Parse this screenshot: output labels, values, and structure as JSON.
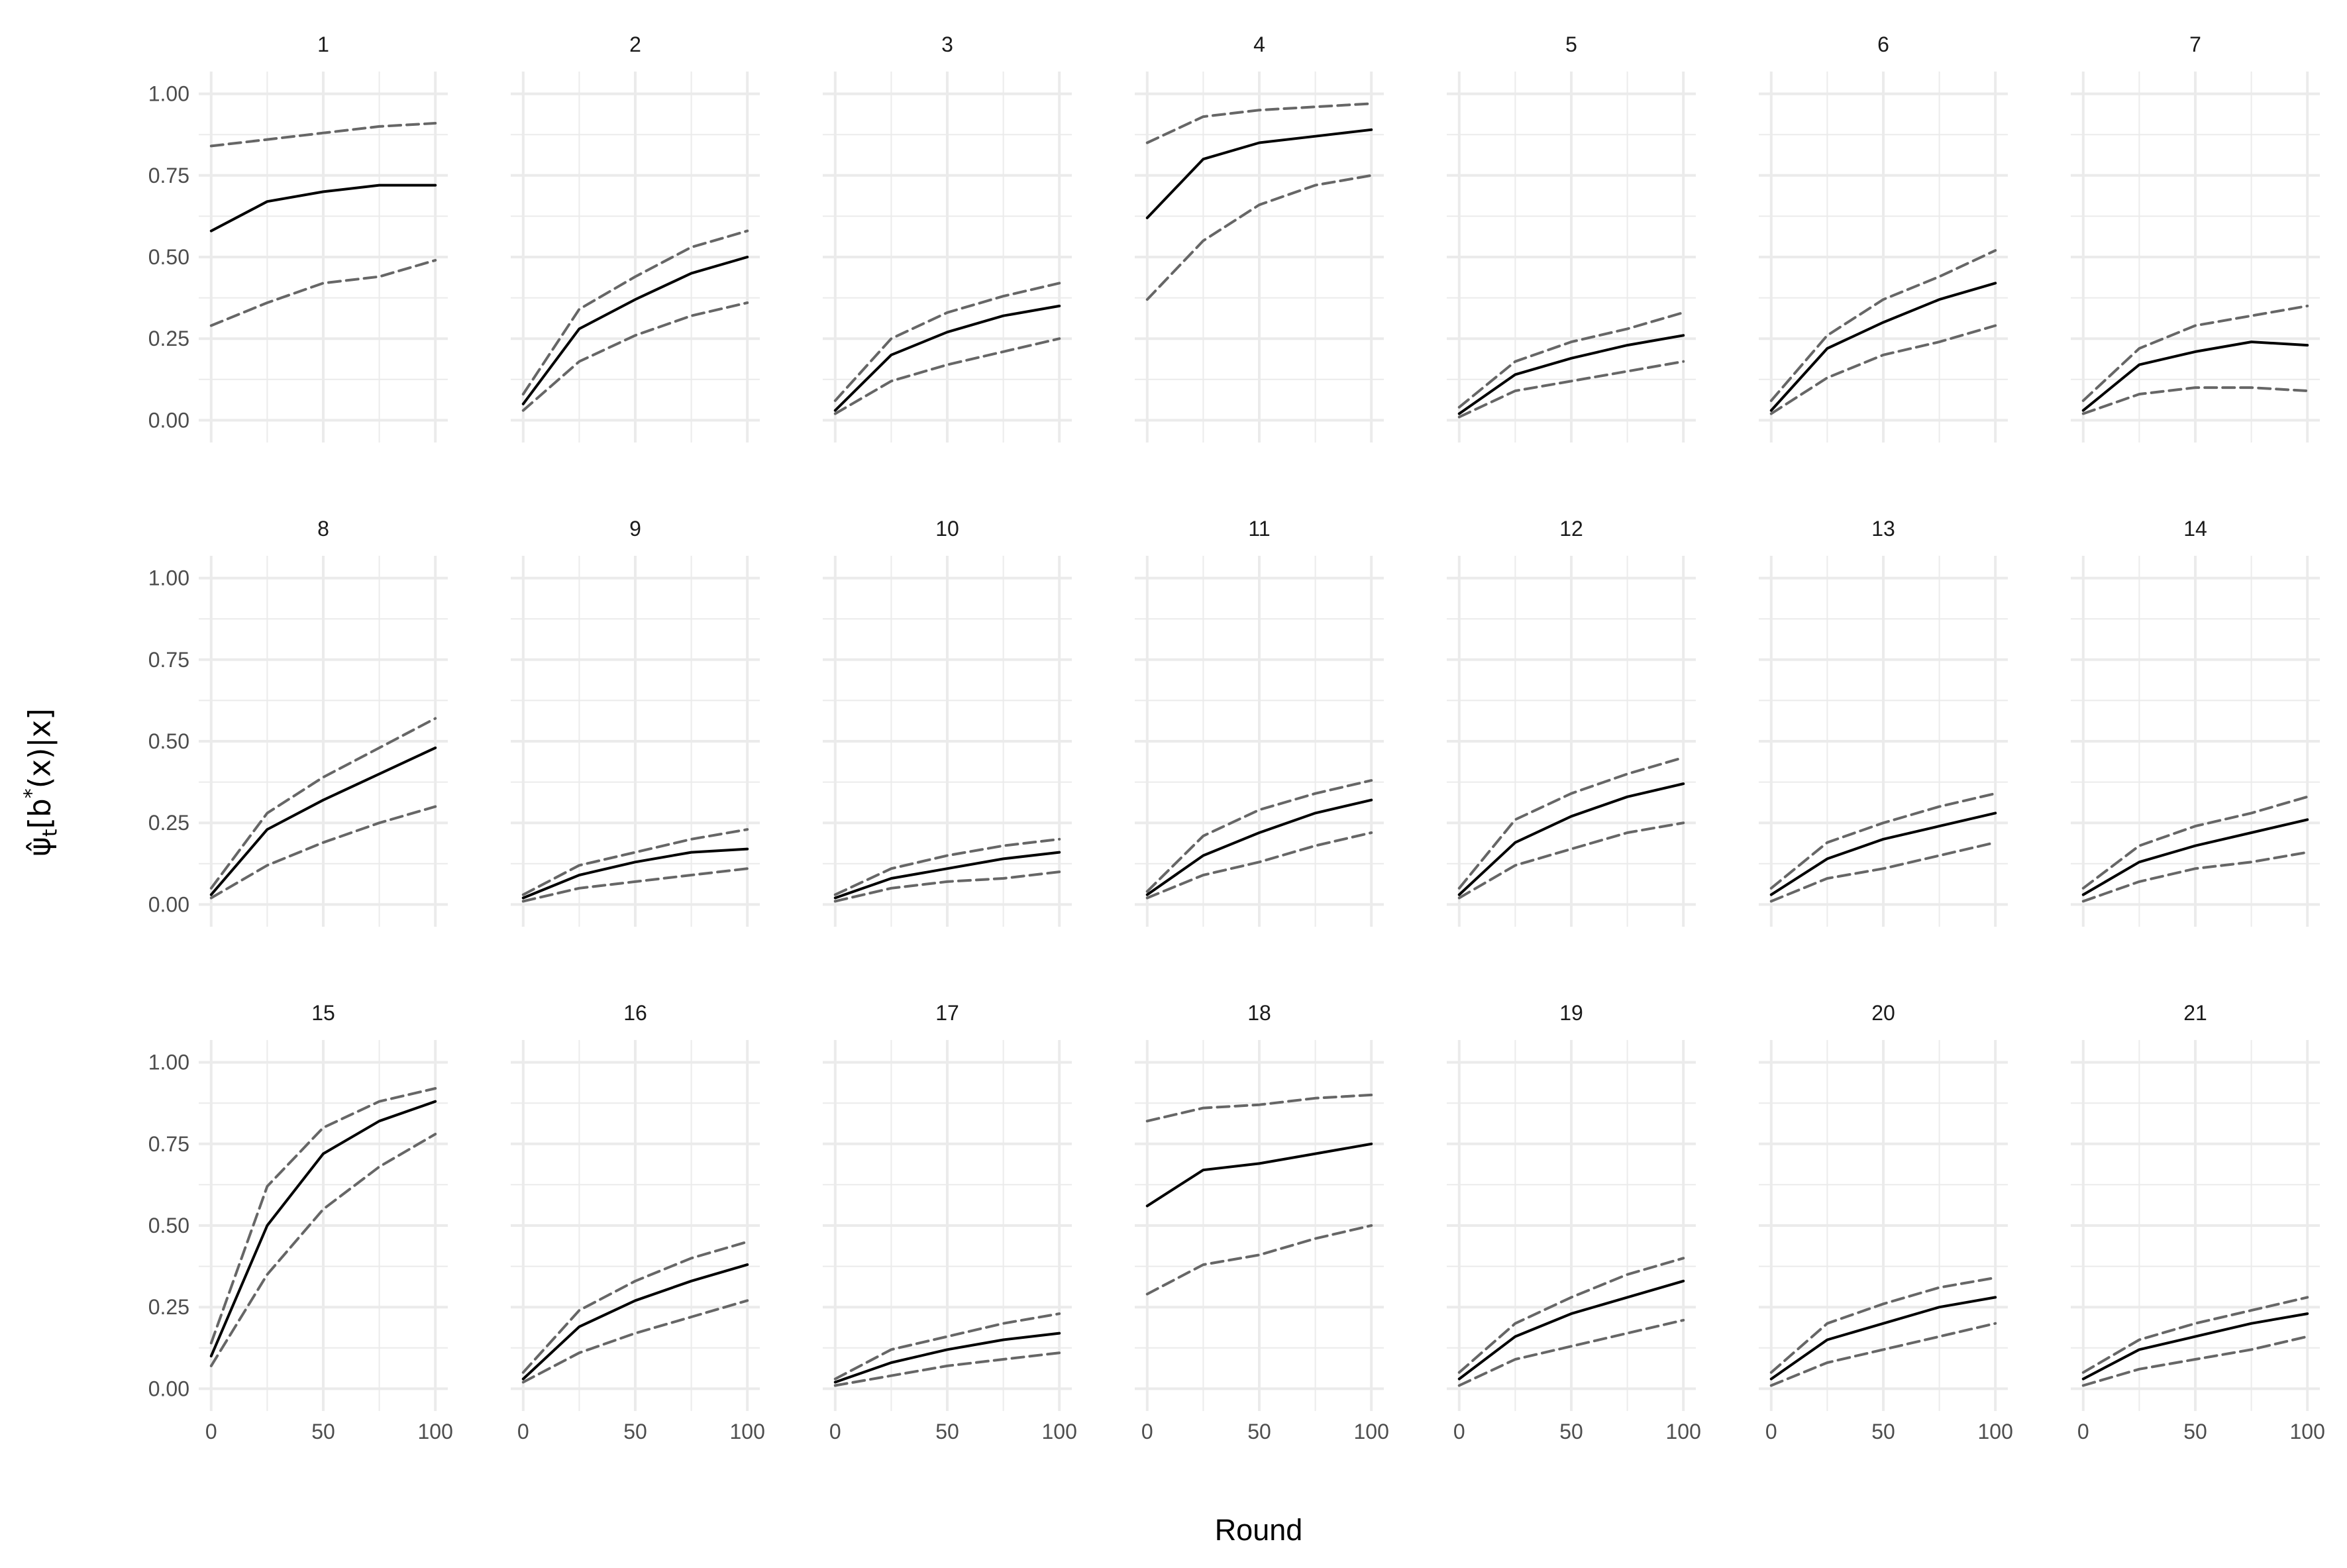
{
  "chart_data": {
    "type": "line",
    "layout": "facet grid 3 rows x 7 columns",
    "xlabel": "Round",
    "ylabel": {
      "psi": "ψ̂",
      "sub": "t",
      "open": "[",
      "b": "b",
      "star": "*",
      "rest": "(x)|x",
      "close": "]"
    },
    "xlim": [
      0,
      100
    ],
    "ylim": [
      0,
      1
    ],
    "x_ticks": [
      "0",
      "50",
      "100"
    ],
    "y_ticks": [
      "0.00",
      "0.25",
      "0.50",
      "0.75",
      "1.00"
    ],
    "grid": true,
    "legend": "none",
    "colors": {
      "estimate": "#000000",
      "bounds": "#666666",
      "grid": "#ebebeb",
      "tick_text": "#4d4d4d"
    },
    "series_styles": {
      "estimate": "solid",
      "lower": "dashed",
      "upper": "dashed"
    },
    "panels": [
      {
        "label": "1",
        "x": [
          0,
          25,
          50,
          75,
          100
        ],
        "estimate": [
          0.58,
          0.67,
          0.7,
          0.72,
          0.72
        ],
        "lower": [
          0.29,
          0.36,
          0.42,
          0.44,
          0.49
        ],
        "upper": [
          0.84,
          0.86,
          0.88,
          0.9,
          0.91
        ]
      },
      {
        "label": "2",
        "x": [
          0,
          25,
          50,
          75,
          100
        ],
        "estimate": [
          0.05,
          0.28,
          0.37,
          0.45,
          0.5
        ],
        "lower": [
          0.03,
          0.18,
          0.26,
          0.32,
          0.36
        ],
        "upper": [
          0.08,
          0.34,
          0.44,
          0.53,
          0.58
        ]
      },
      {
        "label": "3",
        "x": [
          0,
          25,
          50,
          75,
          100
        ],
        "estimate": [
          0.03,
          0.2,
          0.27,
          0.32,
          0.35
        ],
        "lower": [
          0.02,
          0.12,
          0.17,
          0.21,
          0.25
        ],
        "upper": [
          0.06,
          0.25,
          0.33,
          0.38,
          0.42
        ]
      },
      {
        "label": "4",
        "x": [
          0,
          25,
          50,
          75,
          100
        ],
        "estimate": [
          0.62,
          0.8,
          0.85,
          0.87,
          0.89
        ],
        "lower": [
          0.37,
          0.55,
          0.66,
          0.72,
          0.75
        ],
        "upper": [
          0.85,
          0.93,
          0.95,
          0.96,
          0.97
        ]
      },
      {
        "label": "5",
        "x": [
          0,
          25,
          50,
          75,
          100
        ],
        "estimate": [
          0.02,
          0.14,
          0.19,
          0.23,
          0.26
        ],
        "lower": [
          0.01,
          0.09,
          0.12,
          0.15,
          0.18
        ],
        "upper": [
          0.04,
          0.18,
          0.24,
          0.28,
          0.33
        ]
      },
      {
        "label": "6",
        "x": [
          0,
          25,
          50,
          75,
          100
        ],
        "estimate": [
          0.03,
          0.22,
          0.3,
          0.37,
          0.42
        ],
        "lower": [
          0.02,
          0.13,
          0.2,
          0.24,
          0.29
        ],
        "upper": [
          0.06,
          0.26,
          0.37,
          0.44,
          0.52
        ]
      },
      {
        "label": "7",
        "x": [
          0,
          25,
          50,
          75,
          100
        ],
        "estimate": [
          0.03,
          0.17,
          0.21,
          0.24,
          0.23
        ],
        "lower": [
          0.02,
          0.08,
          0.1,
          0.1,
          0.09
        ],
        "upper": [
          0.06,
          0.22,
          0.29,
          0.32,
          0.35
        ]
      },
      {
        "label": "8",
        "x": [
          0,
          25,
          50,
          75,
          100
        ],
        "estimate": [
          0.03,
          0.23,
          0.32,
          0.4,
          0.48
        ],
        "lower": [
          0.02,
          0.12,
          0.19,
          0.25,
          0.3
        ],
        "upper": [
          0.05,
          0.28,
          0.39,
          0.48,
          0.57
        ]
      },
      {
        "label": "9",
        "x": [
          0,
          25,
          50,
          75,
          100
        ],
        "estimate": [
          0.02,
          0.09,
          0.13,
          0.16,
          0.17
        ],
        "lower": [
          0.01,
          0.05,
          0.07,
          0.09,
          0.11
        ],
        "upper": [
          0.03,
          0.12,
          0.16,
          0.2,
          0.23
        ]
      },
      {
        "label": "10",
        "x": [
          0,
          25,
          50,
          75,
          100
        ],
        "estimate": [
          0.02,
          0.08,
          0.11,
          0.14,
          0.16
        ],
        "lower": [
          0.01,
          0.05,
          0.07,
          0.08,
          0.1
        ],
        "upper": [
          0.03,
          0.11,
          0.15,
          0.18,
          0.2
        ]
      },
      {
        "label": "11",
        "x": [
          0,
          25,
          50,
          75,
          100
        ],
        "estimate": [
          0.03,
          0.15,
          0.22,
          0.28,
          0.32
        ],
        "lower": [
          0.02,
          0.09,
          0.13,
          0.18,
          0.22
        ],
        "upper": [
          0.04,
          0.21,
          0.29,
          0.34,
          0.38
        ]
      },
      {
        "label": "12",
        "x": [
          0,
          25,
          50,
          75,
          100
        ],
        "estimate": [
          0.03,
          0.19,
          0.27,
          0.33,
          0.37
        ],
        "lower": [
          0.02,
          0.12,
          0.17,
          0.22,
          0.25
        ],
        "upper": [
          0.05,
          0.26,
          0.34,
          0.4,
          0.45
        ]
      },
      {
        "label": "13",
        "x": [
          0,
          25,
          50,
          75,
          100
        ],
        "estimate": [
          0.03,
          0.14,
          0.2,
          0.24,
          0.28
        ],
        "lower": [
          0.01,
          0.08,
          0.11,
          0.15,
          0.19
        ],
        "upper": [
          0.05,
          0.19,
          0.25,
          0.3,
          0.34
        ]
      },
      {
        "label": "14",
        "x": [
          0,
          25,
          50,
          75,
          100
        ],
        "estimate": [
          0.03,
          0.13,
          0.18,
          0.22,
          0.26
        ],
        "lower": [
          0.01,
          0.07,
          0.11,
          0.13,
          0.16
        ],
        "upper": [
          0.05,
          0.18,
          0.24,
          0.28,
          0.33
        ]
      },
      {
        "label": "15",
        "x": [
          0,
          25,
          50,
          75,
          100
        ],
        "estimate": [
          0.1,
          0.5,
          0.72,
          0.82,
          0.88
        ],
        "lower": [
          0.07,
          0.35,
          0.55,
          0.68,
          0.78
        ],
        "upper": [
          0.14,
          0.62,
          0.8,
          0.88,
          0.92
        ]
      },
      {
        "label": "16",
        "x": [
          0,
          25,
          50,
          75,
          100
        ],
        "estimate": [
          0.03,
          0.19,
          0.27,
          0.33,
          0.38
        ],
        "lower": [
          0.02,
          0.11,
          0.17,
          0.22,
          0.27
        ],
        "upper": [
          0.05,
          0.24,
          0.33,
          0.4,
          0.45
        ]
      },
      {
        "label": "17",
        "x": [
          0,
          25,
          50,
          75,
          100
        ],
        "estimate": [
          0.02,
          0.08,
          0.12,
          0.15,
          0.17
        ],
        "lower": [
          0.01,
          0.04,
          0.07,
          0.09,
          0.11
        ],
        "upper": [
          0.03,
          0.12,
          0.16,
          0.2,
          0.23
        ]
      },
      {
        "label": "18",
        "x": [
          0,
          25,
          50,
          75,
          100
        ],
        "estimate": [
          0.56,
          0.67,
          0.69,
          0.72,
          0.75
        ],
        "lower": [
          0.29,
          0.38,
          0.41,
          0.46,
          0.5
        ],
        "upper": [
          0.82,
          0.86,
          0.87,
          0.89,
          0.9
        ]
      },
      {
        "label": "19",
        "x": [
          0,
          25,
          50,
          75,
          100
        ],
        "estimate": [
          0.03,
          0.16,
          0.23,
          0.28,
          0.33
        ],
        "lower": [
          0.01,
          0.09,
          0.13,
          0.17,
          0.21
        ],
        "upper": [
          0.05,
          0.2,
          0.28,
          0.35,
          0.4
        ]
      },
      {
        "label": "20",
        "x": [
          0,
          25,
          50,
          75,
          100
        ],
        "estimate": [
          0.03,
          0.15,
          0.2,
          0.25,
          0.28
        ],
        "lower": [
          0.01,
          0.08,
          0.12,
          0.16,
          0.2
        ],
        "upper": [
          0.05,
          0.2,
          0.26,
          0.31,
          0.34
        ]
      },
      {
        "label": "21",
        "x": [
          0,
          25,
          50,
          75,
          100
        ],
        "estimate": [
          0.03,
          0.12,
          0.16,
          0.2,
          0.23
        ],
        "lower": [
          0.01,
          0.06,
          0.09,
          0.12,
          0.16
        ],
        "upper": [
          0.05,
          0.15,
          0.2,
          0.24,
          0.28
        ]
      }
    ]
  }
}
